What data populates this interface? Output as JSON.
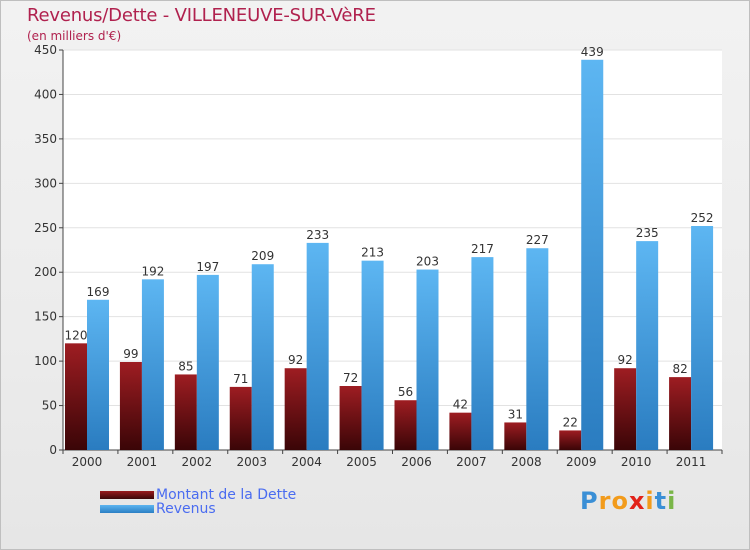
{
  "header": {
    "title": "Revenus/Dette - VILLENEUVE-SUR-VèRE",
    "subtitle": "(en milliers d'€)"
  },
  "chart_data": {
    "type": "bar",
    "title": "Revenus/Dette - VILLENEUVE-SUR-VèRE",
    "subtitle": "(en milliers d'€)",
    "xlabel": "",
    "ylabel": "",
    "ylim": [
      0,
      450
    ],
    "yticks": [
      0,
      50,
      100,
      150,
      200,
      250,
      300,
      350,
      400,
      450
    ],
    "grid": true,
    "legend_position": "bottom-left",
    "categories": [
      "2000",
      "2001",
      "2002",
      "2003",
      "2004",
      "2005",
      "2006",
      "2007",
      "2008",
      "2009",
      "2010",
      "2011"
    ],
    "series": [
      {
        "name": "Montant de la Dette",
        "color": "#7a0f12",
        "values": [
          120,
          99,
          85,
          71,
          92,
          72,
          56,
          42,
          31,
          22,
          92,
          82
        ]
      },
      {
        "name": "Revenus",
        "color": "#4aa3e3",
        "values": [
          169,
          192,
          197,
          209,
          233,
          213,
          203,
          217,
          227,
          439,
          235,
          252
        ]
      }
    ]
  },
  "legend": {
    "items": [
      {
        "label": "Montant de la Dette",
        "color": "#7a0f12"
      },
      {
        "label": "Revenus",
        "color": "#4aa3e3"
      }
    ]
  },
  "logo": {
    "letters": [
      "P",
      "r",
      "o",
      "x",
      "i",
      "t",
      "i"
    ],
    "colors": [
      "#3a8fd6",
      "#f29b1b",
      "#f29b1b",
      "#e2231a",
      "#f29b1b",
      "#3a8fd6",
      "#7ab648"
    ]
  }
}
